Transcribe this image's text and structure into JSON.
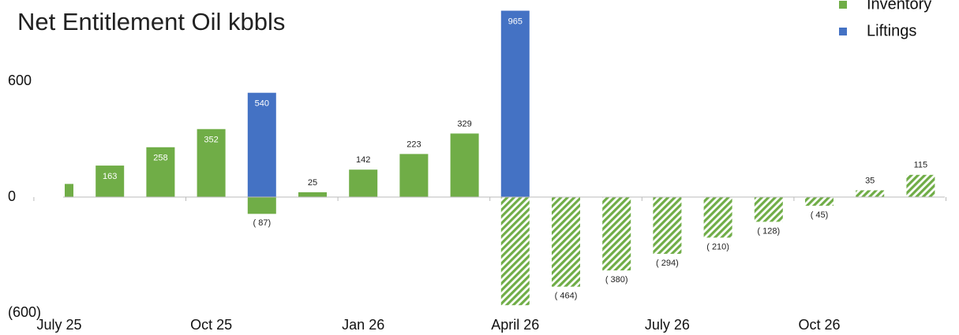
{
  "chart_data": {
    "type": "bar",
    "title": "Net Entitlement Oil kbbls",
    "categories": [
      "July 25",
      null,
      null,
      "Oct 25",
      null,
      null,
      "Jan 26",
      null,
      null,
      "April 26",
      null,
      null,
      "July 26",
      null,
      null,
      "Oct 26",
      null,
      null
    ],
    "series": [
      {
        "name": "Inventory",
        "color": "#70ad47",
        "values": [
          68,
          163,
          258,
          352,
          -87,
          25,
          142,
          223,
          329,
          -560,
          -464,
          -380,
          -294,
          -210,
          -128,
          -45,
          35,
          115
        ],
        "value_labels": [
          null,
          "163",
          "258",
          "352",
          "( 87)",
          "25",
          "142",
          "223",
          "329",
          null,
          "( 464)",
          "( 380)",
          "( 294)",
          "( 210)",
          "( 128)",
          "( 45)",
          "35",
          "115"
        ],
        "hatched": [
          false,
          false,
          false,
          false,
          false,
          false,
          false,
          false,
          false,
          true,
          true,
          true,
          true,
          true,
          true,
          true,
          true,
          true
        ],
        "label_inside": [
          false,
          true,
          true,
          true,
          false,
          false,
          false,
          false,
          false,
          false,
          false,
          false,
          false,
          false,
          false,
          false,
          false,
          false
        ]
      },
      {
        "name": "Liftings",
        "color": "#4472c4",
        "values": [
          null,
          null,
          null,
          null,
          540,
          null,
          null,
          null,
          null,
          965,
          null,
          null,
          null,
          null,
          null,
          null,
          null,
          null
        ],
        "value_labels": [
          null,
          null,
          null,
          null,
          "540",
          null,
          null,
          null,
          null,
          "965",
          null,
          null,
          null,
          null,
          null,
          null,
          null,
          null
        ],
        "label_inside": [
          false,
          false,
          false,
          false,
          true,
          false,
          false,
          false,
          false,
          true,
          false,
          false,
          false,
          false,
          false,
          false,
          false,
          false
        ]
      }
    ],
    "ylim": [
      -600,
      1000
    ],
    "yticks": [
      600,
      0,
      {
        "value": -600,
        "label": "(600)"
      }
    ]
  }
}
